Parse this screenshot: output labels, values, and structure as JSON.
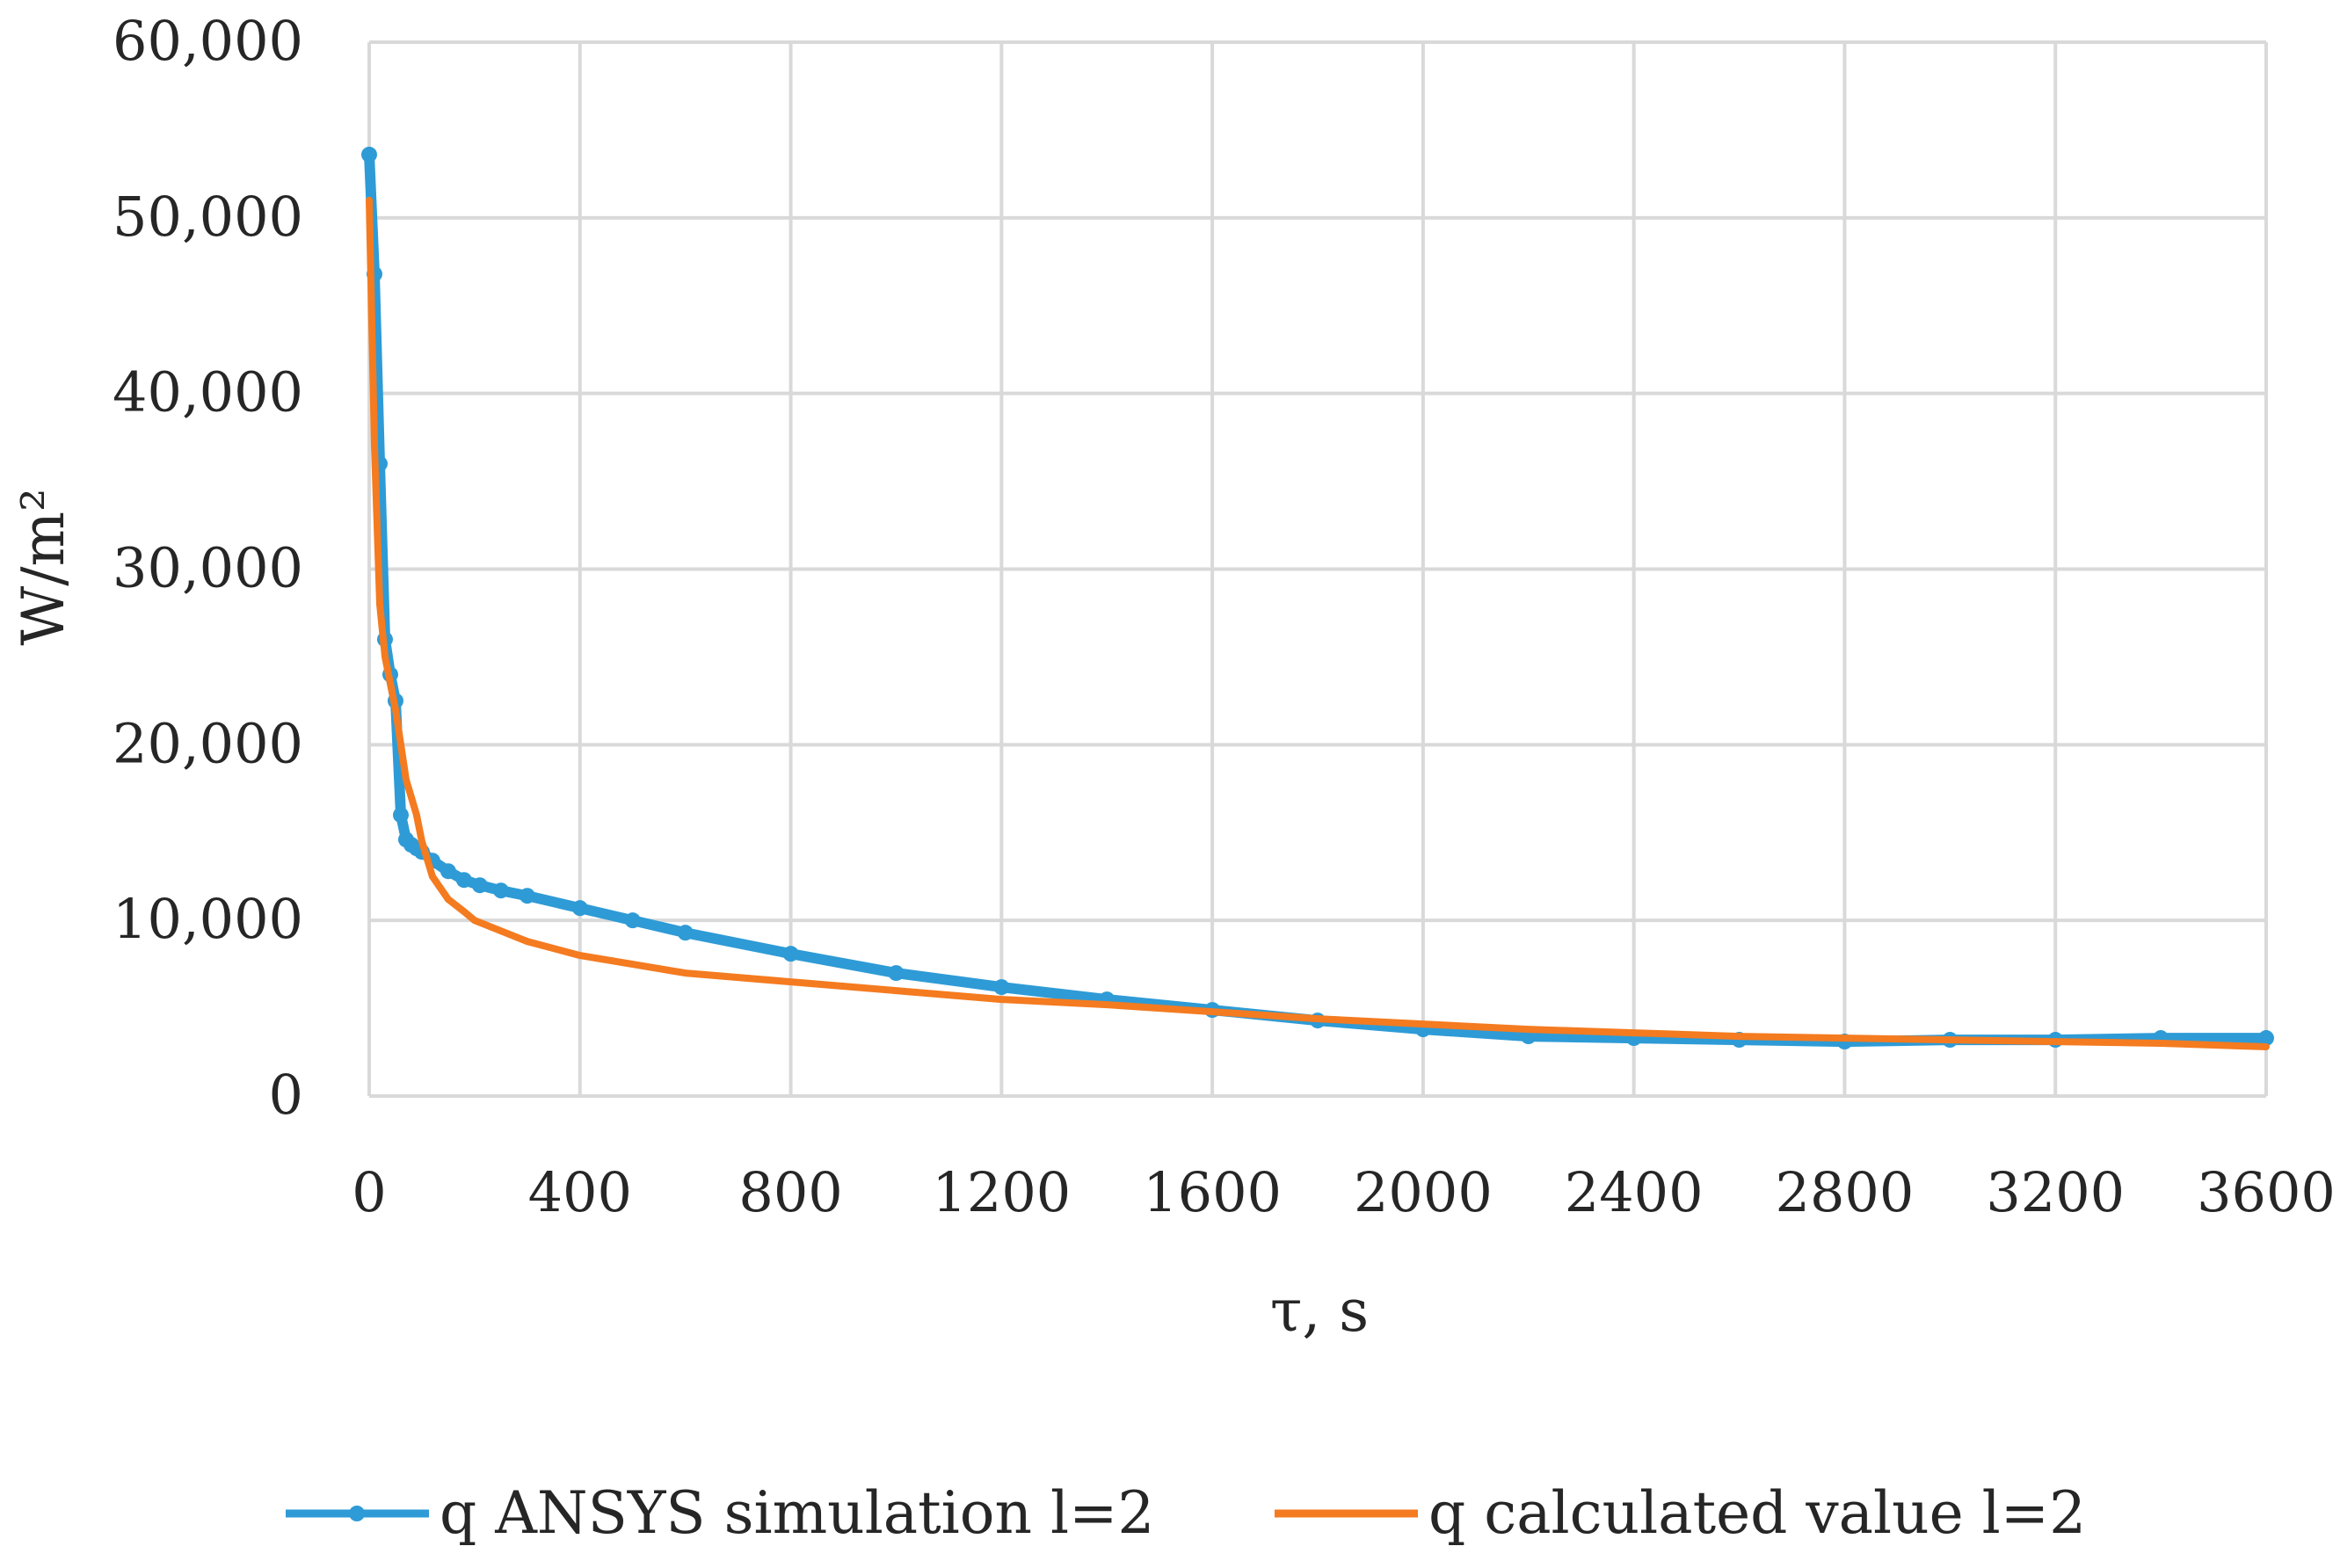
{
  "chart_data": {
    "type": "line",
    "title": "",
    "xlabel": "τ, s",
    "ylabel": "W/m²",
    "xlim": [
      0,
      3600
    ],
    "ylim": [
      0,
      60000
    ],
    "x_ticks": [
      0,
      400,
      800,
      1200,
      1600,
      2000,
      2400,
      2800,
      3200,
      3600
    ],
    "x_tick_labels": [
      "0",
      "400",
      "800",
      "1200",
      "1600",
      "2000",
      "2400",
      "2800",
      "3200",
      "3600"
    ],
    "y_ticks": [
      0,
      10000,
      20000,
      30000,
      40000,
      50000,
      60000
    ],
    "y_tick_labels": [
      "0",
      "10,000",
      "20,000",
      "30,000",
      "40,000",
      "50,000",
      "60,000"
    ],
    "grid": true,
    "legend_position": "bottom",
    "series": [
      {
        "name": "q ANSYS simulation l=2",
        "color": "#2e9bd6",
        "marker": "circle",
        "x": [
          0,
          10,
          20,
          30,
          40,
          50,
          60,
          70,
          80,
          90,
          100,
          120,
          150,
          180,
          210,
          250,
          300,
          400,
          500,
          600,
          800,
          1000,
          1200,
          1400,
          1600,
          1800,
          2000,
          2200,
          2400,
          2600,
          2800,
          3000,
          3200,
          3400,
          3600
        ],
        "values": [
          53600,
          46800,
          36000,
          26000,
          24000,
          22500,
          16000,
          14600,
          14300,
          14100,
          13900,
          13400,
          12800,
          12300,
          12000,
          11700,
          11400,
          10700,
          10000,
          9300,
          8100,
          7000,
          6200,
          5500,
          4900,
          4300,
          3800,
          3400,
          3300,
          3200,
          3100,
          3200,
          3200,
          3300,
          3300
        ]
      },
      {
        "name": "q calculated value l=2",
        "color": "#f47b20",
        "marker": "none",
        "x": [
          0,
          5,
          10,
          20,
          30,
          40,
          50,
          60,
          70,
          80,
          90,
          100,
          120,
          150,
          180,
          200,
          250,
          300,
          400,
          500,
          600,
          800,
          1000,
          1200,
          1400,
          1600,
          1800,
          2000,
          2200,
          2400,
          2600,
          2800,
          3000,
          3200,
          3400,
          3600
        ],
        "values": [
          51000,
          44000,
          37000,
          28000,
          25000,
          23500,
          22000,
          20000,
          18000,
          17000,
          16000,
          14500,
          12500,
          11200,
          10500,
          10000,
          9400,
          8800,
          8000,
          7500,
          7000,
          6500,
          6000,
          5500,
          5200,
          4800,
          4400,
          4100,
          3800,
          3600,
          3400,
          3300,
          3200,
          3100,
          3000,
          2800
        ]
      }
    ]
  }
}
